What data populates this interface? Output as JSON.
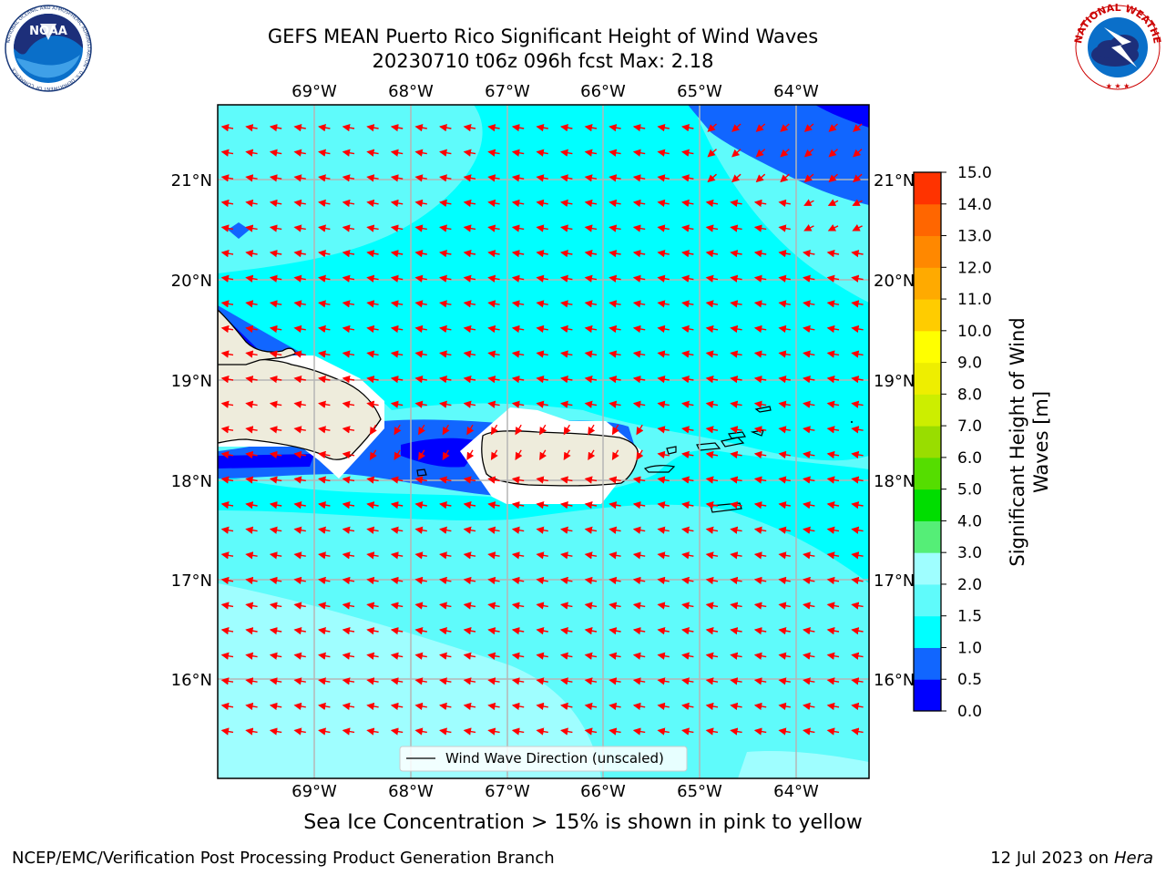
{
  "header": {
    "title_line1": "GEFS MEAN Puerto Rico Significant Height of Wind Waves",
    "title_line2": "20230710 t06z 096h fcst   Max: 2.18"
  },
  "logos": {
    "left": {
      "name": "noaa-logo",
      "text": "NOAA",
      "ring_text": "NATIONAL OCEANIC AND ATMOSPHERIC ADMINISTRATION · U.S. DEPARTMENT OF COMMERCE"
    },
    "right": {
      "name": "nws-logo",
      "ring_text": "NATIONAL WEATHER SERVICE"
    }
  },
  "map": {
    "lon_labels": [
      "69°W",
      "68°W",
      "67°W",
      "66°W",
      "65°W",
      "64°W"
    ],
    "lat_labels": [
      "21°N",
      "20°N",
      "19°N",
      "18°N",
      "17°N",
      "16°N"
    ],
    "legend_label": "Wind Wave Direction (unscaled)",
    "colors": {
      "light": "#9ffeff",
      "mid": "#5ffbfb",
      "cyan": "#00ffff",
      "blue": "#1166ff",
      "deepblue": "#0000ff",
      "land": "#eeecdc",
      "arrow": "#ff0000",
      "grid": "#b5b5b5"
    }
  },
  "colorbar": {
    "label": "Significant Height of Wind Waves [m]",
    "ticks": [
      "0.0",
      "0.5",
      "1.0",
      "1.5",
      "2.0",
      "3.0",
      "4.0",
      "5.0",
      "6.0",
      "7.0",
      "8.0",
      "9.0",
      "10.0",
      "11.0",
      "12.0",
      "13.0",
      "14.0",
      "15.0"
    ],
    "colors": [
      "#0000ff",
      "#1166ff",
      "#00ffff",
      "#5ffbfb",
      "#9ffeff",
      "#55ee77",
      "#00dd00",
      "#55dd00",
      "#99dd00",
      "#ccee00",
      "#eeee00",
      "#ffff00",
      "#ffcc00",
      "#ffaa00",
      "#ff8800",
      "#ff6600",
      "#ff3300",
      "#ff0000"
    ]
  },
  "note": "Sea Ice Concentration > 15% is shown in pink to yellow",
  "footer": {
    "left": "NCEP/EMC/Verification Post Processing Product Generation Branch",
    "right_date": "12 Jul 2023 on ",
    "right_host": "Hera"
  }
}
